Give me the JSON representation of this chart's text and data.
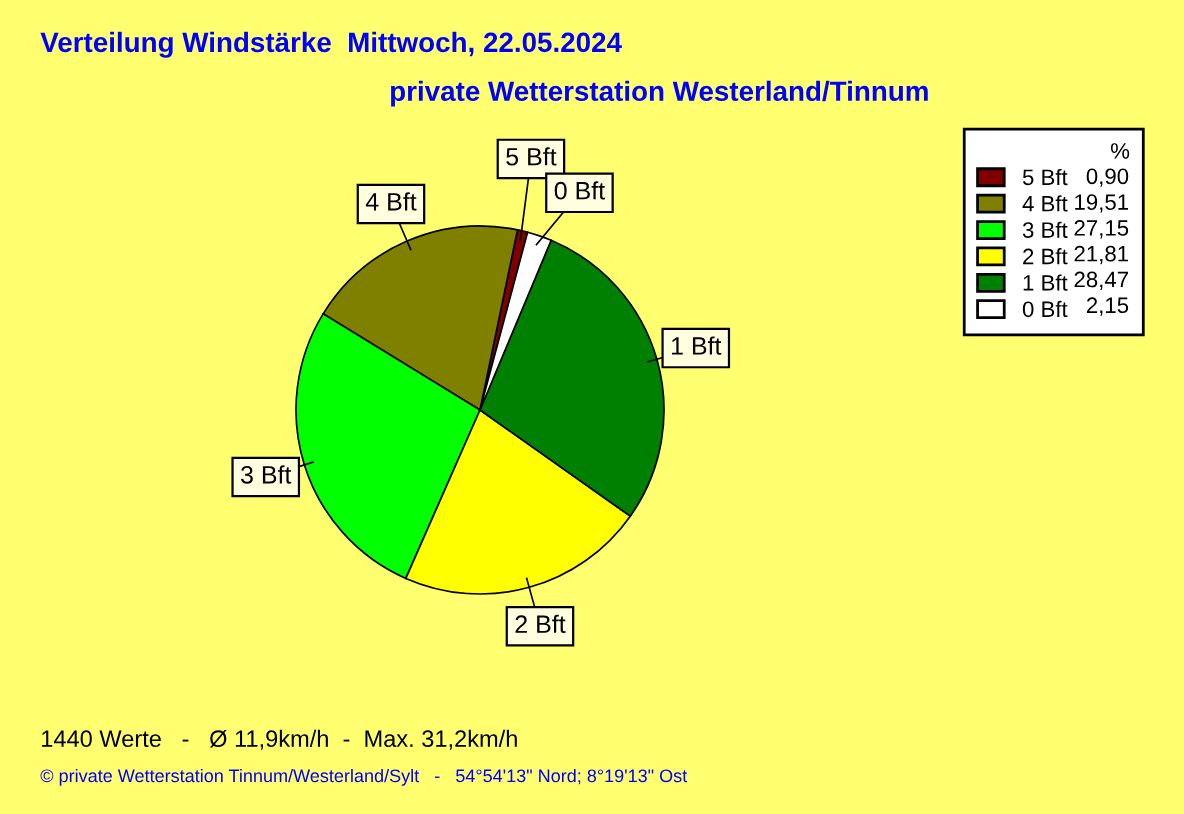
{
  "chart_data": {
    "type": "pie",
    "title": "Verteilung Windstärke  Mittwoch, 22.05.2024",
    "subtitle": "private Wetterstation Westerland/Tinnum",
    "categories": [
      "5 Bft",
      "4 Bft",
      "3 Bft",
      "2 Bft",
      "1 Bft",
      "0 Bft"
    ],
    "values": [
      0.9,
      19.51,
      27.15,
      21.81,
      28.47,
      2.15
    ],
    "colors": [
      "#800000",
      "#808000",
      "#00ff00",
      "#ffff00",
      "#008000",
      "#ffffff"
    ],
    "value_labels": [
      "0,90",
      "19,51",
      "27,15",
      "21,81",
      "28,47",
      "2,15"
    ],
    "legend": "top right",
    "legend_title": "%",
    "annotations": [
      "1440 Werte   -   Ø 11,9km/h  -  Max. 31,2km/h",
      "© private Wetterstation Tinnum/Westerland/Sylt   -   54°54'13\" Nord; 8°19'13\" Ost"
    ]
  }
}
